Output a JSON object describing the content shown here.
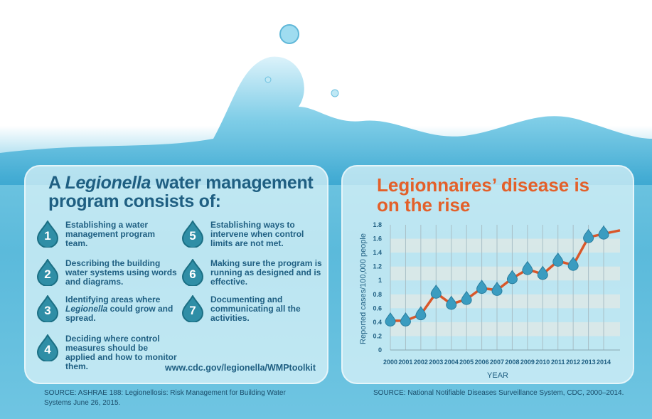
{
  "left_panel": {
    "title_pre": "A ",
    "title_italic": "Legionella",
    "title_post": " water management program consists of:",
    "steps": [
      {
        "num": "1",
        "text": "Establishing a water management program team."
      },
      {
        "num": "2",
        "text": "Describing the building water systems using words and diagrams."
      },
      {
        "num": "3",
        "text_pre": "Identifying areas where ",
        "text_italic": "Legionella",
        "text_post": " could grow and spread."
      },
      {
        "num": "4",
        "text": "Deciding where control measures should be applied and how to monitor them."
      },
      {
        "num": "5",
        "text": "Establishing ways to intervene when control limits are not met."
      },
      {
        "num": "6",
        "text": "Making sure the program is running as designed and is effective."
      },
      {
        "num": "7",
        "text": "Documenting and communicating all the activities."
      }
    ],
    "url": "www.cdc.gov/legionella/WMPtoolkit",
    "source": "SOURCE: ASHRAE 188: Legionellosis: Risk Management for Building Water Systems June 26, 2015."
  },
  "colors": {
    "title_blue": "#1f5f82",
    "accent_orange": "#e3602a",
    "line": "#d9572a",
    "marker": "#3a9cc0"
  },
  "chart_data": {
    "type": "line",
    "title": "Legionnaires’ disease is on the rise",
    "xlabel": "YEAR",
    "ylabel": "Reported cases/100,000 people",
    "categories": [
      "2000",
      "2001",
      "2002",
      "2003",
      "2004",
      "2005",
      "2006",
      "2007",
      "2008",
      "2009",
      "2010",
      "2011",
      "2012",
      "2013",
      "2014"
    ],
    "series": [
      {
        "name": "Reported cases",
        "values": [
          0.42,
          0.42,
          0.51,
          0.82,
          0.66,
          0.73,
          0.89,
          0.86,
          1.03,
          1.16,
          1.09,
          1.28,
          1.22,
          1.62,
          1.67
        ]
      }
    ],
    "trailing_value": 1.72,
    "yticks": [
      "0",
      "0.2",
      "0.4",
      "0.6",
      "0.8",
      "1",
      "1.2",
      "1.4",
      "1.6",
      "1.8"
    ],
    "ylim": [
      0,
      1.8
    ],
    "grid": "horizontal bands",
    "source": "SOURCE: National Notifiable Diseases Surveillance System, CDC, 2000–2014."
  }
}
